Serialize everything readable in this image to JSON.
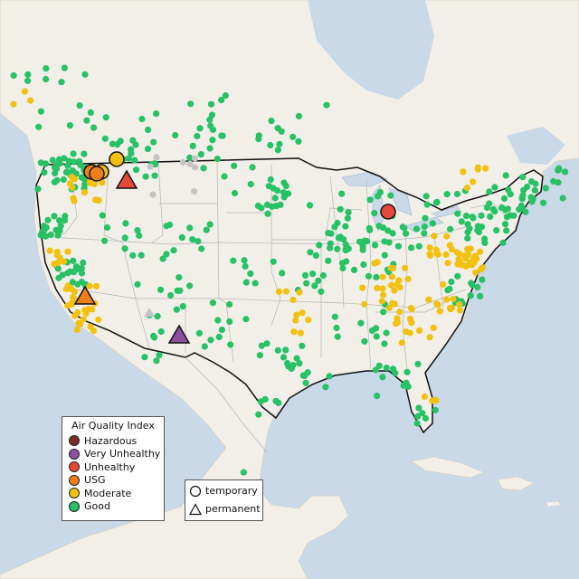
{
  "legend": {
    "title": "Air Quality Index",
    "categories": [
      {
        "label": "Hazardous",
        "color": "#7e2a2a"
      },
      {
        "label": "Very Unhealthy",
        "color": "#8e4fa0"
      },
      {
        "label": "Unhealthy",
        "color": "#e8473b"
      },
      {
        "label": "USG",
        "color": "#ef7f1a"
      },
      {
        "label": "Moderate",
        "color": "#f2c10f"
      },
      {
        "label": "Good",
        "color": "#27c166"
      }
    ],
    "shapes": [
      {
        "label": "temporary",
        "shape": "circle"
      },
      {
        "label": "permanent",
        "shape": "triangle"
      }
    ]
  },
  "colors": {
    "ocean": "#c9d9e8",
    "land": "#f2efe9",
    "good": "#27c166",
    "moderate": "#f2c10f",
    "usg": "#ef7f1a",
    "unhealthy": "#e8473b",
    "very_unhealthy": "#8e4fa0",
    "no_data": "#c4c4c4"
  }
}
